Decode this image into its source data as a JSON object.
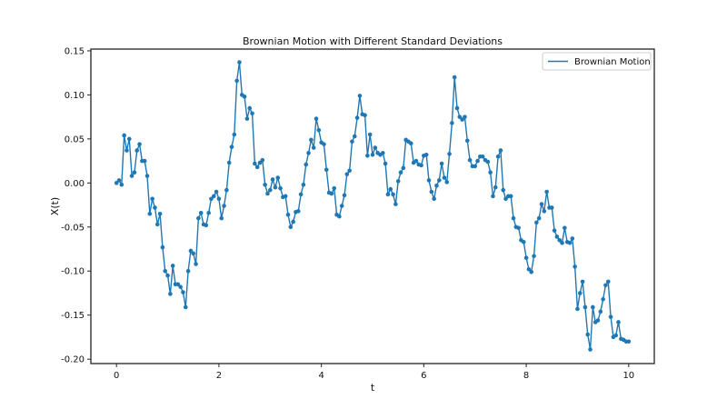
{
  "chart_data": {
    "type": "line",
    "title": "Brownian Motion with Different Standard Deviations",
    "xlabel": "t",
    "ylabel": "X(t)",
    "xlim": [
      -0.5,
      10.5
    ],
    "ylim": [
      -0.205,
      0.152
    ],
    "xticks": [
      0,
      2,
      4,
      6,
      8,
      10
    ],
    "xtick_labels": [
      "0",
      "2",
      "4",
      "6",
      "8",
      "10"
    ],
    "yticks": [
      0.15,
      0.1,
      0.05,
      0.0,
      -0.05,
      -0.1,
      -0.15,
      -0.2
    ],
    "ytick_labels": [
      "0.15",
      "0.10",
      "0.05",
      "0.00",
      "-0.05",
      "-0.10",
      "-0.15",
      "-0.20"
    ],
    "legend_position": "top-right",
    "series": [
      {
        "name": "Brownian Motion",
        "color": "#1f77b4",
        "marker": "circle",
        "keypoints": [
          [
            0.0,
            0.0
          ],
          [
            0.05,
            0.003
          ],
          [
            0.1,
            -0.002
          ],
          [
            0.15,
            0.054
          ],
          [
            0.2,
            0.037
          ],
          [
            0.25,
            0.05
          ],
          [
            0.3,
            0.008
          ],
          [
            0.35,
            0.012
          ],
          [
            0.4,
            0.037
          ],
          [
            0.45,
            0.044
          ],
          [
            0.5,
            0.025
          ],
          [
            0.55,
            0.025
          ],
          [
            0.6,
            0.008
          ],
          [
            0.65,
            -0.035
          ],
          [
            0.7,
            -0.018
          ],
          [
            0.75,
            -0.028
          ],
          [
            0.8,
            -0.047
          ],
          [
            0.85,
            -0.035
          ],
          [
            0.9,
            -0.073
          ],
          [
            0.95,
            -0.1
          ],
          [
            1.0,
            -0.105
          ],
          [
            1.05,
            -0.126
          ],
          [
            1.1,
            -0.094
          ],
          [
            1.15,
            -0.115
          ],
          [
            1.2,
            -0.115
          ],
          [
            1.25,
            -0.118
          ],
          [
            1.3,
            -0.124
          ],
          [
            1.35,
            -0.141
          ],
          [
            1.4,
            -0.1
          ],
          [
            1.45,
            -0.077
          ],
          [
            1.5,
            -0.08
          ],
          [
            1.55,
            -0.092
          ],
          [
            1.6,
            -0.04
          ],
          [
            1.65,
            -0.034
          ],
          [
            1.7,
            -0.047
          ],
          [
            1.75,
            -0.048
          ],
          [
            1.8,
            -0.034
          ],
          [
            1.85,
            -0.018
          ],
          [
            1.9,
            -0.015
          ],
          [
            1.95,
            -0.01
          ],
          [
            2.0,
            -0.018
          ],
          [
            2.05,
            -0.04
          ],
          [
            2.1,
            -0.026
          ],
          [
            2.15,
            -0.008
          ],
          [
            2.2,
            0.023
          ],
          [
            2.25,
            0.041
          ],
          [
            2.3,
            0.055
          ],
          [
            2.35,
            0.116
          ],
          [
            2.4,
            0.137
          ],
          [
            2.45,
            0.1
          ],
          [
            2.5,
            0.098
          ],
          [
            2.55,
            0.073
          ],
          [
            2.6,
            0.085
          ],
          [
            2.65,
            0.079
          ],
          [
            2.7,
            0.022
          ],
          [
            2.75,
            0.018
          ],
          [
            2.8,
            0.023
          ],
          [
            2.85,
            0.026
          ],
          [
            2.9,
            -0.002
          ],
          [
            2.95,
            -0.012
          ],
          [
            3.0,
            -0.008
          ],
          [
            3.05,
            0.004
          ],
          [
            3.1,
            -0.005
          ],
          [
            3.15,
            0.006
          ],
          [
            3.2,
            -0.006
          ],
          [
            3.25,
            -0.016
          ],
          [
            3.3,
            -0.015
          ],
          [
            3.35,
            -0.036
          ],
          [
            3.4,
            -0.05
          ],
          [
            3.45,
            -0.044
          ],
          [
            3.5,
            -0.033
          ],
          [
            3.55,
            -0.032
          ],
          [
            3.6,
            -0.013
          ],
          [
            3.65,
            -0.002
          ],
          [
            3.7,
            0.021
          ],
          [
            3.75,
            0.034
          ],
          [
            3.8,
            0.049
          ],
          [
            3.85,
            0.04
          ],
          [
            3.9,
            0.073
          ],
          [
            3.95,
            0.06
          ],
          [
            4.0,
            0.046
          ],
          [
            4.05,
            0.044
          ],
          [
            4.1,
            0.015
          ],
          [
            4.15,
            -0.011
          ],
          [
            4.2,
            -0.012
          ],
          [
            4.25,
            -0.006
          ],
          [
            4.3,
            -0.036
          ],
          [
            4.35,
            -0.038
          ],
          [
            4.4,
            -0.026
          ],
          [
            4.45,
            -0.014
          ],
          [
            4.5,
            0.01
          ],
          [
            4.55,
            0.014
          ],
          [
            4.6,
            0.047
          ],
          [
            4.65,
            0.053
          ],
          [
            4.7,
            0.074
          ],
          [
            4.75,
            0.099
          ],
          [
            4.8,
            0.078
          ],
          [
            4.85,
            0.077
          ],
          [
            4.9,
            0.031
          ],
          [
            4.95,
            0.055
          ],
          [
            5.0,
            0.032
          ],
          [
            5.05,
            0.04
          ],
          [
            5.1,
            0.034
          ],
          [
            5.15,
            0.032
          ],
          [
            5.2,
            0.034
          ],
          [
            5.25,
            0.022
          ],
          [
            5.3,
            -0.013
          ],
          [
            5.35,
            -0.007
          ],
          [
            5.4,
            -0.013
          ],
          [
            5.45,
            -0.024
          ],
          [
            5.5,
            0.002
          ],
          [
            5.55,
            0.012
          ],
          [
            5.6,
            0.017
          ],
          [
            5.65,
            0.049
          ],
          [
            5.7,
            0.047
          ],
          [
            5.75,
            0.045
          ],
          [
            5.8,
            0.023
          ],
          [
            5.85,
            0.025
          ],
          [
            5.9,
            0.021
          ],
          [
            5.95,
            0.02
          ],
          [
            6.0,
            0.031
          ],
          [
            6.05,
            0.032
          ],
          [
            6.1,
            0.003
          ],
          [
            6.15,
            -0.01
          ],
          [
            6.2,
            -0.018
          ],
          [
            6.25,
            -0.003
          ],
          [
            6.3,
            0.003
          ],
          [
            6.35,
            0.022
          ],
          [
            6.4,
            0.006
          ],
          [
            6.45,
            0.001
          ],
          [
            6.5,
            0.033
          ],
          [
            6.55,
            0.068
          ],
          [
            6.6,
            0.12
          ],
          [
            6.65,
            0.085
          ],
          [
            6.7,
            0.075
          ],
          [
            6.75,
            0.072
          ],
          [
            6.8,
            0.075
          ],
          [
            6.85,
            0.048
          ],
          [
            6.9,
            0.026
          ],
          [
            6.95,
            0.019
          ],
          [
            7.0,
            0.019
          ],
          [
            7.05,
            0.025
          ],
          [
            7.1,
            0.03
          ],
          [
            7.15,
            0.03
          ],
          [
            7.2,
            0.026
          ],
          [
            7.25,
            0.024
          ],
          [
            7.3,
            0.012
          ],
          [
            7.35,
            -0.015
          ],
          [
            7.4,
            -0.005
          ],
          [
            7.45,
            0.03
          ],
          [
            7.5,
            0.037
          ],
          [
            7.55,
            -0.008
          ],
          [
            7.6,
            -0.018
          ],
          [
            7.65,
            -0.015
          ],
          [
            7.7,
            -0.015
          ],
          [
            7.75,
            -0.04
          ],
          [
            7.8,
            -0.05
          ],
          [
            7.85,
            -0.051
          ],
          [
            7.9,
            -0.065
          ],
          [
            7.95,
            -0.067
          ],
          [
            8.0,
            -0.085
          ],
          [
            8.05,
            -0.098
          ],
          [
            8.1,
            -0.101
          ],
          [
            8.15,
            -0.083
          ],
          [
            8.2,
            -0.045
          ],
          [
            8.25,
            -0.04
          ],
          [
            8.3,
            -0.024
          ],
          [
            8.35,
            -0.032
          ],
          [
            8.4,
            -0.01
          ],
          [
            8.45,
            -0.028
          ],
          [
            8.5,
            -0.028
          ],
          [
            8.55,
            -0.054
          ],
          [
            8.6,
            -0.061
          ],
          [
            8.65,
            -0.065
          ],
          [
            8.7,
            -0.068
          ],
          [
            8.75,
            -0.051
          ],
          [
            8.8,
            -0.067
          ],
          [
            8.85,
            -0.068
          ],
          [
            8.9,
            -0.063
          ],
          [
            8.95,
            -0.095
          ],
          [
            9.0,
            -0.143
          ],
          [
            9.05,
            -0.125
          ],
          [
            9.1,
            -0.112
          ],
          [
            9.15,
            -0.141
          ],
          [
            9.2,
            -0.172
          ],
          [
            9.25,
            -0.189
          ],
          [
            9.3,
            -0.141
          ],
          [
            9.35,
            -0.158
          ],
          [
            9.4,
            -0.156
          ],
          [
            9.45,
            -0.146
          ],
          [
            9.5,
            -0.132
          ],
          [
            9.55,
            -0.116
          ],
          [
            9.6,
            -0.112
          ],
          [
            9.65,
            -0.152
          ],
          [
            9.7,
            -0.175
          ],
          [
            9.75,
            -0.173
          ],
          [
            9.8,
            -0.158
          ],
          [
            9.85,
            -0.177
          ],
          [
            9.9,
            -0.178
          ],
          [
            9.95,
            -0.18
          ],
          [
            10.0,
            -0.18
          ]
        ]
      }
    ]
  }
}
